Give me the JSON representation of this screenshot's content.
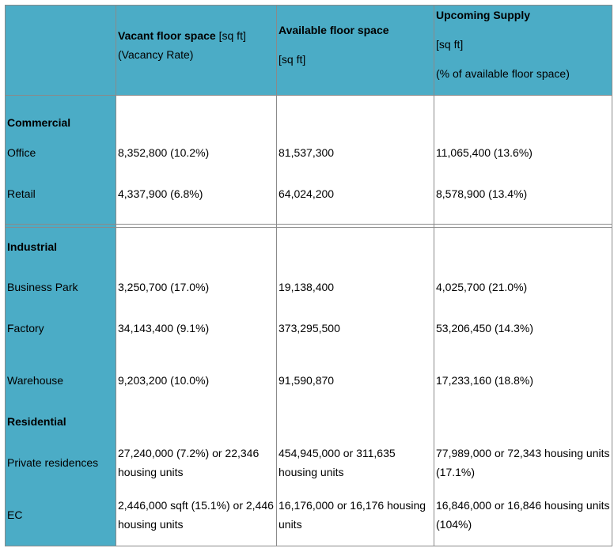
{
  "header": {
    "columns": [
      {
        "title": "Vacant floor space",
        "unit": "[sq ft]",
        "note": "(Vacancy Rate)"
      },
      {
        "title": "Available floor space",
        "unit": "[sq ft]"
      },
      {
        "title": "Upcoming Supply",
        "unit": "[sq ft]",
        "note": "(% of available floor space)"
      }
    ]
  },
  "sections": [
    {
      "name": "Commercial",
      "rows": [
        {
          "label": "Office",
          "cells": [
            "8,352,800 (10.2%)",
            "81,537,300",
            "11,065,400 (13.6%)"
          ]
        },
        {
          "label": "Retail",
          "cells": [
            "4,337,900 (6.8%)",
            "64,024,200",
            "8,578,900 (13.4%)"
          ]
        }
      ]
    },
    {
      "name": "Industrial",
      "rows": [
        {
          "label": "Business Park",
          "cells": [
            "3,250,700 (17.0%)",
            "19,138,400",
            "4,025,700 (21.0%)"
          ]
        },
        {
          "label": "Factory",
          "cells": [
            "34,143,400 (9.1%)",
            "373,295,500",
            "53,206,450 (14.3%)"
          ]
        },
        {
          "label": "Warehouse",
          "cells": [
            "9,203,200 (10.0%)",
            "91,590,870",
            "17,233,160 (18.8%)"
          ]
        }
      ]
    },
    {
      "name": "Residential",
      "rows": [
        {
          "label": "Private residences",
          "cells": [
            "27,240,000 (7.2%) or 22,346 housing units",
            "454,945,000 or 311,635 housing units",
            "77,989,000 or 72,343 housing units (17.1%)"
          ]
        },
        {
          "label": "EC",
          "cells": [
            "2,446,000 sqft (15.1%) or 2,446 housing units",
            "16,176,000 or 16,176 housing units",
            "16,846,000 or 16,846 housing units (104%)"
          ]
        }
      ]
    }
  ]
}
